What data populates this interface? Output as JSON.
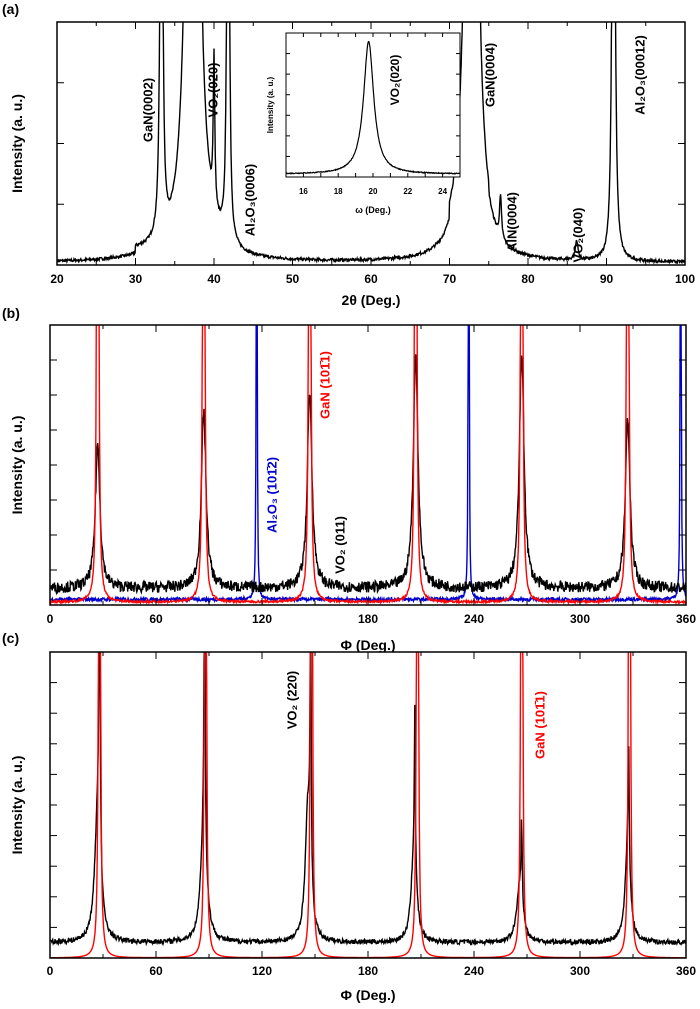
{
  "chart_data": [
    {
      "type": "line",
      "panel_label": "(a)",
      "xlabel": "2θ (Deg.)",
      "ylabel": "Intensity (a. u.)",
      "xlim": [
        20,
        100
      ],
      "ylim": [
        0,
        1
      ],
      "xticks": [
        "20",
        "30",
        "40",
        "50",
        "60",
        "70",
        "80",
        "90",
        "100"
      ],
      "series": [
        {
          "color": "#000000",
          "baseline": 0.01,
          "noise": 0.006,
          "peaks": [
            [
              33.3,
              3.0,
              0.15
            ],
            [
              37.3,
              6.0,
              0.55
            ],
            [
              40.0,
              0.62,
              0.12
            ],
            [
              41.8,
              4.0,
              0.12
            ],
            [
              72.8,
              6.0,
              0.5
            ],
            [
              76.5,
              0.17,
              0.15
            ],
            [
              86.2,
              0.08,
              0.2
            ],
            [
              90.9,
              4.0,
              0.15
            ]
          ],
          "steps": [
            [
              30.0,
              33.5,
              0.03
            ],
            [
              70.0,
              75.0,
              0.07
            ]
          ]
        }
      ],
      "annotations": [
        {
          "text": "GaN(0002)",
          "color": "#000000"
        },
        {
          "text": "VO₂(020)",
          "color": "#000000"
        },
        {
          "text": "Al₂O₃(0006)",
          "color": "#000000"
        },
        {
          "text": "GaN(0004)",
          "color": "#000000"
        },
        {
          "text": "AlN(0004)",
          "color": "#000000"
        },
        {
          "text": "VO₂(040)",
          "color": "#000000"
        },
        {
          "text": "Al₂O₃(00012)",
          "color": "#000000"
        }
      ],
      "inset": {
        "type": "line",
        "xlabel": "ω (Deg.)",
        "ylabel": "Intensity (a. u.)",
        "xlim": [
          15,
          25
        ],
        "ylim": [
          0,
          1
        ],
        "xticks": [
          "16",
          "18",
          "20",
          "22",
          "24"
        ],
        "series": [
          {
            "color": "#000000",
            "baseline": 0.02,
            "noise": 0.003,
            "peaks": [
              [
                19.75,
                0.92,
                0.35
              ]
            ]
          }
        ],
        "annotations": [
          {
            "text": "VO₂(020)",
            "color": "#000000"
          }
        ]
      }
    },
    {
      "type": "line",
      "panel_label": "(b)",
      "xlabel": "Φ (Deg.)",
      "ylabel": "Intensity (a. u.)",
      "xlim": [
        0,
        360
      ],
      "ylim": [
        0,
        1
      ],
      "xticks": [
        "0",
        "60",
        "120",
        "180",
        "240",
        "300",
        "360"
      ],
      "series": [
        {
          "color": "#0000cc",
          "baseline": 0.02,
          "noise": 0.006,
          "peaks": [
            [
              117,
              6.0,
              0.15
            ],
            [
              237,
              6.0,
              0.15
            ],
            [
              357,
              6.0,
              0.15
            ]
          ]
        },
        {
          "color": "#000000",
          "baseline": 0.06,
          "noise": 0.02,
          "peaks": [
            [
              27,
              0.51,
              1.6
            ],
            [
              87,
              0.63,
              1.6
            ],
            [
              147,
              0.7,
              1.6
            ],
            [
              207,
              0.83,
              1.6
            ],
            [
              267,
              0.83,
              1.6
            ],
            [
              327,
              0.6,
              1.6
            ]
          ]
        },
        {
          "color": "#ff0000",
          "baseline": 0.01,
          "noise": 0.004,
          "peaks": [
            [
              27,
              6.0,
              0.35
            ],
            [
              87,
              6.0,
              0.35
            ],
            [
              147,
              6.0,
              0.35
            ],
            [
              207,
              6.0,
              0.35
            ],
            [
              267,
              6.0,
              0.35
            ],
            [
              327,
              6.0,
              0.35
            ]
          ]
        }
      ],
      "annotations": [
        {
          "text": "Al₂O₃ (101̄2)",
          "color": "#0000cc"
        },
        {
          "text": "GaN (101̄1)",
          "color": "#ff0000"
        },
        {
          "text": "VO₂ (011)",
          "color": "#000000"
        }
      ]
    },
    {
      "type": "line",
      "panel_label": "(c)",
      "xlabel": "Φ (Deg.)",
      "ylabel": "Intensity (a. u.)",
      "xlim": [
        0,
        360
      ],
      "ylim": [
        0,
        1
      ],
      "xticks": [
        "0",
        "60",
        "120",
        "180",
        "240",
        "300",
        "360"
      ],
      "series": [
        {
          "color": "#000000",
          "baseline": 0.05,
          "noise": 0.008,
          "peaks": [
            [
              27,
              0.42,
              2.0
            ],
            [
              28,
              1.2,
              0.35
            ],
            [
              87,
              0.38,
              2.0
            ],
            [
              87.5,
              1.2,
              0.3
            ],
            [
              146,
              0.45,
              1.8
            ],
            [
              147.5,
              1.2,
              0.3
            ],
            [
              206,
              0.3,
              1.8
            ],
            [
              206.5,
              0.5,
              0.3
            ],
            [
              266,
              0.2,
              2.0
            ],
            [
              267,
              0.25,
              0.3
            ],
            [
              327,
              0.3,
              1.8
            ],
            [
              327.5,
              0.4,
              0.35
            ]
          ]
        },
        {
          "color": "#ff0000",
          "baseline": 0.0,
          "noise": 0.0,
          "peaks": [
            [
              28,
              6.0,
              0.3
            ],
            [
              88,
              6.0,
              0.3
            ],
            [
              148,
              6.0,
              0.3
            ],
            [
              208,
              6.0,
              0.3
            ],
            [
              267,
              6.0,
              0.3
            ],
            [
              328,
              6.0,
              0.3
            ]
          ]
        }
      ],
      "annotations": [
        {
          "text": "VO₂ (220)",
          "color": "#000000"
        },
        {
          "text": "GaN (101̄1)",
          "color": "#ff0000"
        }
      ]
    }
  ]
}
